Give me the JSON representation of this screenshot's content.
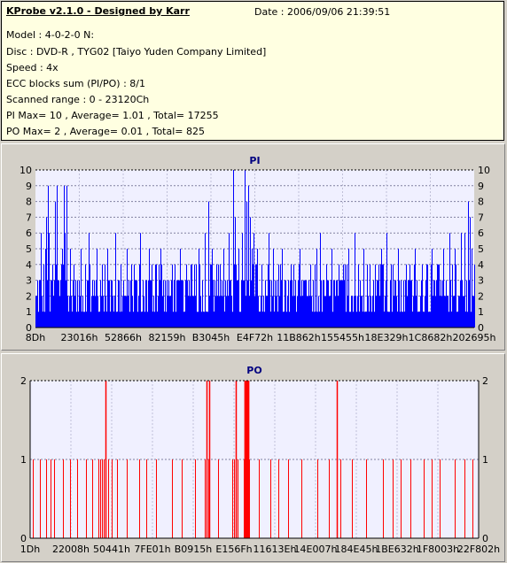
{
  "info": {
    "title": "KProbe v2.1.0 - Designed by Karr",
    "date": "Date : 2006/09/06 21:39:51",
    "lines": [
      "Model : 4-0-2-0 N:",
      "Disc : DVD-R , TYG02 [Taiyo Yuden Company Limited]",
      "Speed : 4x",
      "ECC blocks sum (PI/PO) : 8/1",
      "Scanned range : 0 - 23120Ch",
      "PI Max= 10 , Average= 1.01 , Total= 17255",
      "PO Max= 2 , Average= 0.01 , Total= 825"
    ]
  },
  "chart_data": [
    {
      "type": "bar",
      "title": "PI",
      "color": "#0000ff",
      "ylim": [
        0,
        10
      ],
      "yticks": [
        "0",
        "1",
        "2",
        "3",
        "4",
        "5",
        "6",
        "7",
        "8",
        "9",
        "10"
      ],
      "xticks": [
        "8Dh",
        "23016h",
        "52866h",
        "82159h",
        "B3045h",
        "E4F72h",
        "11B862h",
        "155455h",
        "18E329h",
        "1C8682h",
        "202695h"
      ],
      "xlim": [
        0,
        23120
      ],
      "grid": true,
      "typical_range": [
        1,
        3
      ],
      "peaks": [
        [
          200,
          3
        ],
        [
          300,
          6
        ],
        [
          400,
          4
        ],
        [
          500,
          5
        ],
        [
          560,
          7
        ],
        [
          650,
          9
        ],
        [
          720,
          6
        ],
        [
          800,
          3
        ],
        [
          900,
          4
        ],
        [
          1050,
          8
        ],
        [
          1120,
          9
        ],
        [
          1300,
          3
        ],
        [
          1400,
          5
        ],
        [
          1500,
          9
        ],
        [
          1550,
          6
        ],
        [
          1650,
          9
        ],
        [
          1800,
          5
        ],
        [
          2000,
          4
        ],
        [
          2200,
          3
        ],
        [
          2400,
          5
        ],
        [
          2600,
          4
        ],
        [
          2800,
          6
        ],
        [
          3000,
          3
        ],
        [
          3200,
          5
        ],
        [
          3500,
          4
        ],
        [
          3800,
          5
        ],
        [
          4000,
          3
        ],
        [
          4200,
          6
        ],
        [
          4500,
          4
        ],
        [
          4800,
          5
        ],
        [
          5000,
          3
        ],
        [
          5200,
          4
        ],
        [
          5500,
          6
        ],
        [
          5800,
          3
        ],
        [
          6000,
          5
        ],
        [
          6300,
          4
        ],
        [
          6600,
          5
        ],
        [
          6900,
          3
        ],
        [
          7200,
          4
        ],
        [
          7600,
          5
        ],
        [
          7900,
          3
        ],
        [
          8200,
          4
        ],
        [
          8600,
          5
        ],
        [
          8900,
          6
        ],
        [
          9100,
          8
        ],
        [
          9300,
          5
        ],
        [
          9600,
          4
        ],
        [
          9900,
          5
        ],
        [
          10200,
          6
        ],
        [
          10400,
          10
        ],
        [
          10500,
          7
        ],
        [
          10700,
          5
        ],
        [
          10900,
          6
        ],
        [
          11000,
          10
        ],
        [
          11100,
          8
        ],
        [
          11200,
          9
        ],
        [
          11300,
          7
        ],
        [
          11400,
          5
        ],
        [
          11500,
          6
        ],
        [
          11700,
          5
        ],
        [
          11900,
          4
        ],
        [
          12100,
          3
        ],
        [
          12300,
          6
        ],
        [
          12500,
          5
        ],
        [
          12800,
          4
        ],
        [
          13000,
          5
        ],
        [
          13300,
          3
        ],
        [
          13600,
          4
        ],
        [
          13900,
          5
        ],
        [
          14200,
          3
        ],
        [
          14500,
          4
        ],
        [
          14800,
          5
        ],
        [
          15000,
          6
        ],
        [
          15300,
          4
        ],
        [
          15600,
          5
        ],
        [
          15900,
          3
        ],
        [
          16200,
          4
        ],
        [
          16500,
          5
        ],
        [
          16800,
          6
        ],
        [
          17000,
          4
        ],
        [
          17300,
          5
        ],
        [
          17600,
          3
        ],
        [
          17900,
          4
        ],
        [
          18200,
          5
        ],
        [
          18500,
          6
        ],
        [
          18800,
          4
        ],
        [
          19100,
          5
        ],
        [
          19400,
          3
        ],
        [
          19700,
          4
        ],
        [
          20000,
          5
        ],
        [
          20300,
          3
        ],
        [
          20600,
          4
        ],
        [
          20900,
          5
        ],
        [
          21200,
          4
        ],
        [
          21500,
          5
        ],
        [
          21800,
          6
        ],
        [
          22100,
          5
        ],
        [
          22400,
          6
        ],
        [
          22600,
          6
        ],
        [
          22800,
          8
        ],
        [
          22900,
          7
        ],
        [
          23000,
          5
        ],
        [
          23100,
          4
        ]
      ]
    },
    {
      "type": "bar",
      "title": "PO",
      "color": "#ff0000",
      "ylim": [
        0,
        2
      ],
      "yticks": [
        "0",
        "1",
        "2"
      ],
      "xticks": [
        "1Dh",
        "22008h",
        "50441h",
        "7FE01h",
        "B0915h",
        "E156Fh",
        "11613Eh",
        "14E007h",
        "184E45h",
        "1BE632h",
        "1F8003h",
        "22F802h"
      ],
      "xlim": [
        0,
        23120
      ],
      "grid": true,
      "ones": [
        150,
        500,
        800,
        1050,
        1250,
        1700,
        2050,
        2400,
        2900,
        3200,
        3500,
        3600,
        3800,
        4000,
        4200,
        4500,
        5000,
        5600,
        6000,
        6500,
        7300,
        7800,
        8500,
        9000,
        9200,
        9700,
        10400,
        11800,
        12400,
        12800,
        13300,
        14000,
        14800,
        15400,
        16000,
        16600,
        17300,
        18200,
        18700,
        19100,
        19600,
        20300,
        20700,
        21100,
        21900,
        22400,
        22800
      ],
      "twos": [
        3900,
        9100,
        9250,
        10600,
        11050,
        11080,
        11110,
        11140,
        11170,
        11200,
        11230,
        11260,
        15800
      ],
      "dense_ranges": [
        [
          3700,
          3900
        ],
        [
          10400,
          10700
        ],
        [
          11000,
          11300
        ]
      ]
    }
  ]
}
